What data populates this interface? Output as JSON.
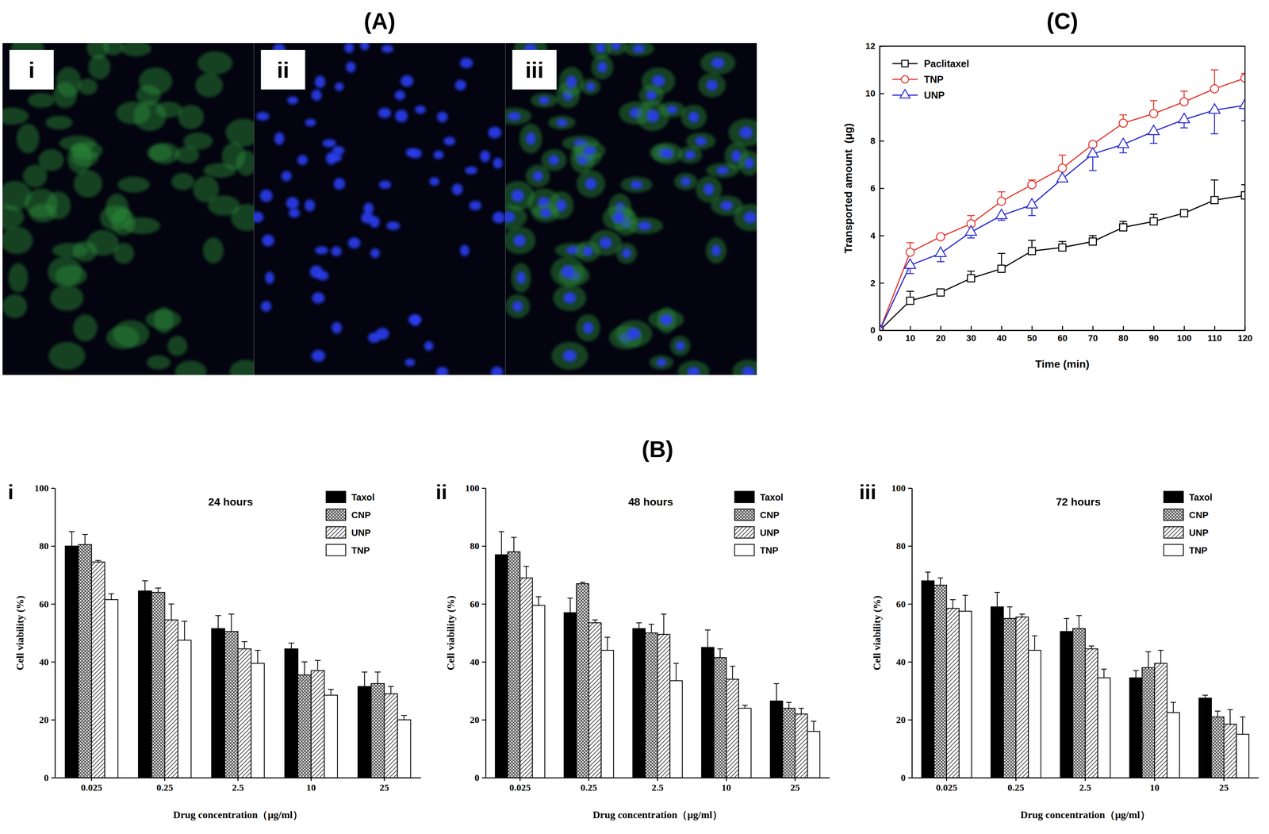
{
  "figure": {
    "panel_a": {
      "label": "(A)",
      "images": [
        "i",
        "ii",
        "iii"
      ]
    },
    "panel_b_label": "(B)"
  },
  "chart_data": [
    {
      "type": "bar",
      "label": "i",
      "title": "24 hours",
      "categories": [
        "0.025",
        "0.25",
        "2.5",
        "10",
        "25"
      ],
      "x_label": "Drug concentration（μg/ml）",
      "y_label": "Cell viability (%)",
      "ylim": [
        0,
        100
      ],
      "yticks": [
        0,
        20,
        40,
        60,
        80,
        100
      ],
      "legend": "upper right",
      "series": [
        {
          "name": "Taxol",
          "color": "#000000",
          "values": [
            80,
            64.5,
            51.5,
            44.5,
            31.5
          ],
          "errors": [
            5,
            3.5,
            4.5,
            2,
            5
          ]
        },
        {
          "name": "CNP",
          "color": "#4d4d4d",
          "values": [
            80.5,
            64,
            50.5,
            35.5,
            32.5
          ],
          "errors": [
            3.5,
            1.5,
            6,
            4.5,
            4
          ]
        },
        {
          "name": "UNP",
          "color": "#555555",
          "values": [
            74.5,
            54.5,
            44.5,
            37,
            29
          ],
          "errors": [
            0.5,
            5.5,
            2.5,
            3.5,
            2.5
          ]
        },
        {
          "name": "TNP",
          "color": "#ffffff",
          "values": [
            61.5,
            47.5,
            39.5,
            28.5,
            20
          ],
          "errors": [
            2,
            6.5,
            4.5,
            2,
            1.5
          ]
        }
      ]
    },
    {
      "type": "bar",
      "label": "ii",
      "title": "48 hours",
      "categories": [
        "0.025",
        "0.25",
        "2.5",
        "10",
        "25"
      ],
      "x_label": "Drug concentration（μg/ml）",
      "y_label": "Cell viability (%)",
      "ylim": [
        0,
        100
      ],
      "yticks": [
        0,
        20,
        40,
        60,
        80,
        100
      ],
      "legend": "upper right",
      "series": [
        {
          "name": "Taxol",
          "color": "#000000",
          "values": [
            77,
            57,
            51.5,
            45,
            26.5
          ],
          "errors": [
            8,
            5,
            2,
            6,
            6
          ]
        },
        {
          "name": "CNP",
          "color": "#4d4d4d",
          "values": [
            78,
            67,
            50,
            41.5,
            24
          ],
          "errors": [
            5,
            0.5,
            3,
            3,
            2
          ]
        },
        {
          "name": "UNP",
          "color": "#555555",
          "values": [
            69,
            53.5,
            49.5,
            34,
            22
          ],
          "errors": [
            4,
            1,
            7,
            4.5,
            2
          ]
        },
        {
          "name": "TNP",
          "color": "#ffffff",
          "values": [
            59.5,
            44,
            33.5,
            24,
            16
          ],
          "errors": [
            3,
            4.5,
            6,
            1,
            3.5
          ]
        }
      ]
    },
    {
      "type": "bar",
      "label": "iii",
      "title": "72 hours",
      "categories": [
        "0.025",
        "0.25",
        "2.5",
        "10",
        "25"
      ],
      "x_label": "Drug concentration（μg/ml）",
      "y_label": "Cell viability (%)",
      "ylim": [
        0,
        100
      ],
      "yticks": [
        0,
        20,
        40,
        60,
        80,
        100
      ],
      "legend": "upper right",
      "series": [
        {
          "name": "Taxol",
          "color": "#000000",
          "values": [
            68,
            59,
            50.5,
            34.5,
            27.5
          ],
          "errors": [
            3,
            5,
            4.5,
            2.5,
            1
          ]
        },
        {
          "name": "CNP",
          "color": "#4d4d4d",
          "values": [
            66.5,
            55,
            51.5,
            38,
            21
          ],
          "errors": [
            2.5,
            4,
            4.5,
            5.5,
            2
          ]
        },
        {
          "name": "UNP",
          "color": "#555555",
          "values": [
            58.5,
            55.5,
            44.5,
            39.5,
            18.5
          ],
          "errors": [
            3,
            1,
            1,
            4.5,
            5
          ]
        },
        {
          "name": "TNP",
          "color": "#ffffff",
          "values": [
            57.5,
            44,
            34.5,
            22.5,
            15
          ],
          "errors": [
            5.5,
            5,
            3,
            3.5,
            6
          ]
        }
      ]
    },
    {
      "type": "line",
      "label": "(C)",
      "x_label": "Time (min)",
      "y_label": "Transported amount  (μg)",
      "x": [
        0,
        10,
        20,
        30,
        40,
        50,
        60,
        70,
        80,
        90,
        100,
        110,
        120
      ],
      "xlim": [
        0,
        120
      ],
      "xticks": [
        0,
        10,
        20,
        30,
        40,
        50,
        60,
        70,
        80,
        90,
        100,
        110,
        120
      ],
      "ylim": [
        0,
        12
      ],
      "yticks": [
        0,
        2,
        4,
        6,
        8,
        10,
        12
      ],
      "legend": "upper left",
      "series": [
        {
          "name": "Paclitaxel",
          "color": "#000000",
          "marker": "square",
          "values": [
            0,
            1.25,
            1.6,
            2.2,
            2.6,
            3.35,
            3.5,
            3.75,
            4.35,
            4.6,
            4.95,
            5.5,
            5.7
          ],
          "errors": [
            0,
            0.4,
            0.1,
            0.3,
            0.65,
            0.45,
            0.25,
            0.25,
            0.25,
            0.3,
            0.15,
            0.85,
            0.45
          ]
        },
        {
          "name": "TNP",
          "color": "#e8352d",
          "marker": "circle",
          "values": [
            0,
            3.3,
            3.95,
            4.5,
            5.45,
            6.15,
            6.85,
            7.85,
            8.75,
            9.15,
            9.65,
            10.2,
            10.65
          ],
          "errors": [
            0,
            0.4,
            0.1,
            0.35,
            0.4,
            0.2,
            0.55,
            0.1,
            0.35,
            0.55,
            0.45,
            0.8,
            0.2
          ]
        },
        {
          "name": "UNP",
          "color": "#2a2ad0",
          "marker": "triangle",
          "values": [
            0,
            2.75,
            3.25,
            4.15,
            4.85,
            5.3,
            6.4,
            7.45,
            7.85,
            8.4,
            8.9,
            9.3,
            9.5
          ],
          "errors_minus": [
            0,
            0.35,
            0.35,
            0.25,
            0.2,
            0.45,
            0.1,
            0.7,
            0.35,
            0.5,
            0.35,
            1.0,
            0.65
          ]
        }
      ]
    }
  ]
}
